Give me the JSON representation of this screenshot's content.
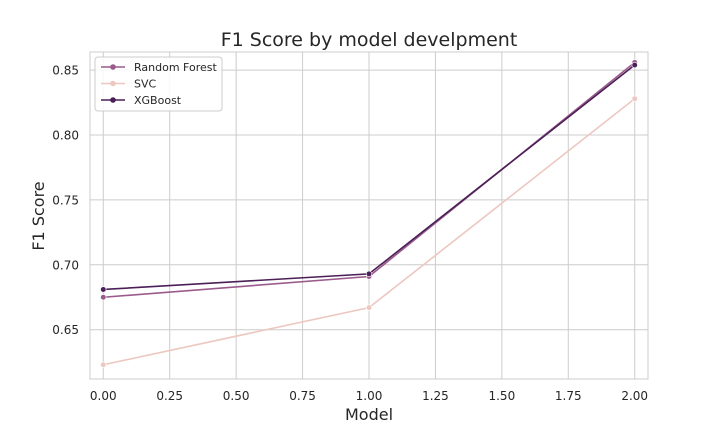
{
  "chart_data": {
    "type": "line",
    "title": "F1 Score by model develpment",
    "xlabel": "Model",
    "ylabel": "F1 Score",
    "xlim": [
      -0.05,
      2.05
    ],
    "ylim": [
      0.612,
      0.864
    ],
    "xticks": [
      0.0,
      0.25,
      0.5,
      0.75,
      1.0,
      1.25,
      1.5,
      1.75,
      2.0
    ],
    "xtick_labels": [
      "0.00",
      "0.25",
      "0.50",
      "0.75",
      "1.00",
      "1.25",
      "1.50",
      "1.75",
      "2.00"
    ],
    "yticks": [
      0.65,
      0.7,
      0.75,
      0.8,
      0.85
    ],
    "ytick_labels": [
      "0.65",
      "0.70",
      "0.75",
      "0.80",
      "0.85"
    ],
    "grid": true,
    "legend_position": "top-left",
    "x": [
      0.0,
      1.0,
      2.0
    ],
    "series": [
      {
        "name": "Random Forest",
        "values": [
          0.675,
          0.691,
          0.856
        ],
        "color": "#9a5b8c"
      },
      {
        "name": "SVC",
        "values": [
          0.623,
          0.667,
          0.828
        ],
        "color": "#ecc8c0"
      },
      {
        "name": "XGBoost",
        "values": [
          0.681,
          0.693,
          0.854
        ],
        "color": "#4b1f57"
      }
    ]
  }
}
